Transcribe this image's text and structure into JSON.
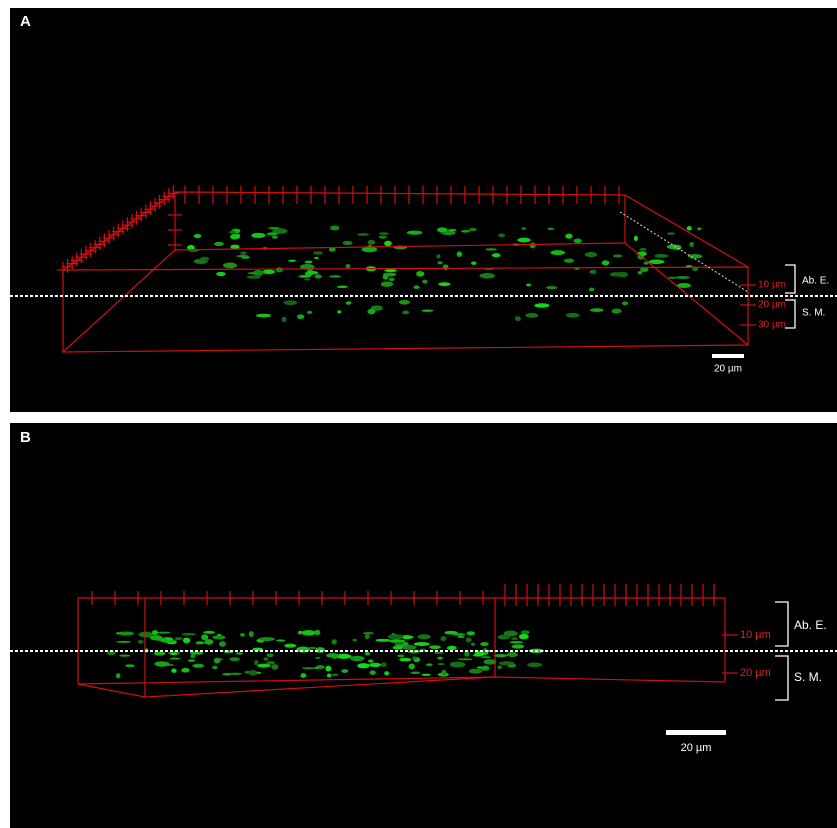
{
  "panels": [
    {
      "label": "A",
      "depth_labels": [
        "10 µm",
        "20 µm",
        "30 µm"
      ],
      "layers": [
        "Ab. E.",
        "S. M."
      ],
      "scale_bar": "20 µm"
    },
    {
      "label": "B",
      "depth_labels": [
        "10 µm",
        "20 µm"
      ],
      "layers": [
        "Ab. E.",
        "S. M."
      ],
      "scale_bar": "20 µm"
    }
  ]
}
